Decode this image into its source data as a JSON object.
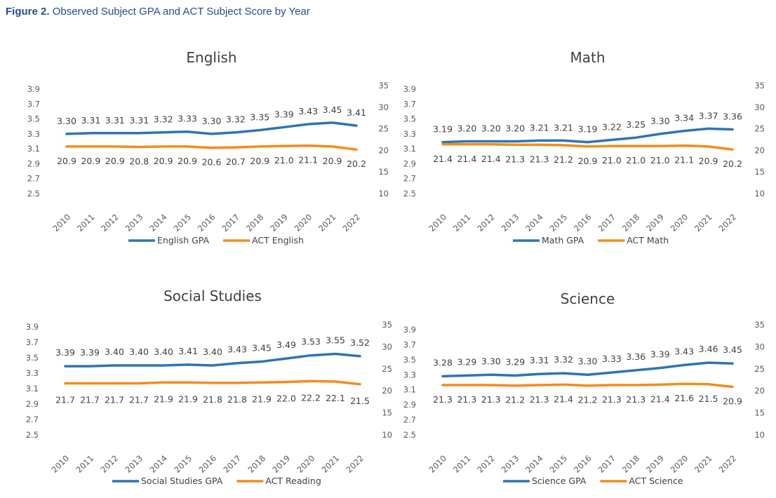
{
  "caption": {
    "prefix": "Figure 2.",
    "text": "Observed Subject GPA and ACT Subject Score by Year"
  },
  "colors": {
    "gpa": "#2e75b6",
    "act": "#f28c1e",
    "caption": "#1f4e9a"
  },
  "chart_data": [
    {
      "type": "line",
      "title": "English",
      "categories": [
        "2010",
        "2011",
        "2012",
        "2013",
        "2014",
        "2015",
        "2016",
        "2017",
        "2018",
        "2019",
        "2020",
        "2021",
        "2022"
      ],
      "left_axis": {
        "range": [
          2.5,
          3.9
        ],
        "ticks": [
          "3.9",
          "3.7",
          "3.5",
          "3.3",
          "3.1",
          "2.9",
          "2.7",
          "2.5"
        ]
      },
      "right_axis": {
        "range": [
          10,
          35
        ],
        "ticks": [
          "35",
          "30",
          "25",
          "20",
          "15",
          "10"
        ]
      },
      "series": [
        {
          "name": "English GPA",
          "axis": "left",
          "color": "#2e75b6",
          "values": [
            3.3,
            3.31,
            3.31,
            3.31,
            3.32,
            3.33,
            3.3,
            3.32,
            3.35,
            3.39,
            3.43,
            3.45,
            3.41
          ],
          "labels": [
            "3.30",
            "3.31",
            "3.31",
            "3.31",
            "3.32",
            "3.33",
            "3.30",
            "3.32",
            "3.35",
            "3.39",
            "3.43",
            "3.45",
            "3.41"
          ]
        },
        {
          "name": "ACT English",
          "axis": "right",
          "color": "#f28c1e",
          "values": [
            20.9,
            20.9,
            20.9,
            20.8,
            20.9,
            20.9,
            20.6,
            20.7,
            20.9,
            21.0,
            21.1,
            20.9,
            20.2
          ],
          "labels": [
            "20.9",
            "20.9",
            "20.9",
            "20.8",
            "20.9",
            "20.9",
            "20.6",
            "20.7",
            "20.9",
            "21.0",
            "21.1",
            "20.9",
            "20.2"
          ]
        }
      ]
    },
    {
      "type": "line",
      "title": "Math",
      "categories": [
        "2010",
        "2011",
        "2012",
        "2013",
        "2014",
        "2015",
        "2016",
        "2017",
        "2018",
        "2019",
        "2020",
        "2021",
        "2022"
      ],
      "left_axis": {
        "range": [
          2.5,
          3.9
        ],
        "ticks": [
          "3.9",
          "3.7",
          "3.5",
          "3.3",
          "3.1",
          "2.9",
          "2.7",
          "2.5"
        ]
      },
      "right_axis": {
        "range": [
          10,
          35
        ],
        "ticks": [
          "35",
          "30",
          "25",
          "20",
          "15",
          "10"
        ]
      },
      "series": [
        {
          "name": "Math GPA",
          "axis": "left",
          "color": "#2e75b6",
          "values": [
            3.19,
            3.2,
            3.2,
            3.2,
            3.21,
            3.21,
            3.19,
            3.22,
            3.25,
            3.3,
            3.34,
            3.37,
            3.36
          ],
          "labels": [
            "3.19",
            "3.20",
            "3.20",
            "3.20",
            "3.21",
            "3.21",
            "3.19",
            "3.22",
            "3.25",
            "3.30",
            "3.34",
            "3.37",
            "3.36"
          ]
        },
        {
          "name": "ACT Math",
          "axis": "right",
          "color": "#f28c1e",
          "values": [
            21.4,
            21.4,
            21.4,
            21.3,
            21.3,
            21.2,
            20.9,
            21.0,
            21.0,
            21.0,
            21.1,
            20.9,
            20.2
          ],
          "labels": [
            "21.4",
            "21.4",
            "21.4",
            "21.3",
            "21.3",
            "21.2",
            "20.9",
            "21.0",
            "21.0",
            "21.0",
            "21.1",
            "20.9",
            "20.2"
          ]
        }
      ]
    },
    {
      "type": "line",
      "title": "Social Studies",
      "categories": [
        "2010",
        "2011",
        "2012",
        "2013",
        "2014",
        "2015",
        "2016",
        "2017",
        "2018",
        "2019",
        "2020",
        "2021",
        "2022"
      ],
      "left_axis": {
        "range": [
          2.5,
          3.9
        ],
        "ticks": [
          "3.9",
          "3.7",
          "3.5",
          "3.3",
          "3.1",
          "2.9",
          "2.7",
          "2.5"
        ]
      },
      "right_axis": {
        "range": [
          10,
          35
        ],
        "ticks": [
          "35",
          "30",
          "25",
          "20",
          "15",
          "10"
        ]
      },
      "series": [
        {
          "name": "Social Studies GPA",
          "axis": "left",
          "color": "#2e75b6",
          "values": [
            3.39,
            3.39,
            3.4,
            3.4,
            3.4,
            3.41,
            3.4,
            3.43,
            3.45,
            3.49,
            3.53,
            3.55,
            3.52
          ],
          "labels": [
            "3.39",
            "3.39",
            "3.40",
            "3.40",
            "3.40",
            "3.41",
            "3.40",
            "3.43",
            "3.45",
            "3.49",
            "3.53",
            "3.55",
            "3.52"
          ]
        },
        {
          "name": "ACT Reading",
          "axis": "right",
          "color": "#f28c1e",
          "values": [
            21.7,
            21.7,
            21.7,
            21.7,
            21.9,
            21.9,
            21.8,
            21.8,
            21.9,
            22.0,
            22.2,
            22.1,
            21.5
          ],
          "labels": [
            "21.7",
            "21.7",
            "21.7",
            "21.7",
            "21.9",
            "21.9",
            "21.8",
            "21.8",
            "21.9",
            "22.0",
            "22.2",
            "22.1",
            "21.5"
          ]
        }
      ]
    },
    {
      "type": "line",
      "title": "Science",
      "categories": [
        "2010",
        "2011",
        "2012",
        "2013",
        "2014",
        "2015",
        "2016",
        "2017",
        "2018",
        "2019",
        "2020",
        "2021",
        "2022"
      ],
      "left_axis": {
        "range": [
          2.5,
          3.9
        ],
        "ticks": [
          "3.9",
          "3.7",
          "3.5",
          "3.3",
          "3.1",
          "2.9",
          "2.7",
          "2.5"
        ]
      },
      "right_axis": {
        "range": [
          10,
          35
        ],
        "ticks": [
          "35",
          "30",
          "25",
          "20",
          "15",
          "10"
        ]
      },
      "series": [
        {
          "name": "Science GPA",
          "axis": "left",
          "color": "#2e75b6",
          "values": [
            3.28,
            3.29,
            3.3,
            3.29,
            3.31,
            3.32,
            3.3,
            3.33,
            3.36,
            3.39,
            3.43,
            3.46,
            3.45
          ],
          "labels": [
            "3.28",
            "3.29",
            "3.30",
            "3.29",
            "3.31",
            "3.32",
            "3.30",
            "3.33",
            "3.36",
            "3.39",
            "3.43",
            "3.46",
            "3.45"
          ]
        },
        {
          "name": "ACT Science",
          "axis": "right",
          "color": "#f28c1e",
          "values": [
            21.3,
            21.3,
            21.3,
            21.2,
            21.3,
            21.4,
            21.2,
            21.3,
            21.3,
            21.4,
            21.6,
            21.5,
            20.9
          ],
          "labels": [
            "21.3",
            "21.3",
            "21.3",
            "21.2",
            "21.3",
            "21.4",
            "21.2",
            "21.3",
            "21.3",
            "21.4",
            "21.6",
            "21.5",
            "20.9"
          ]
        }
      ]
    }
  ]
}
